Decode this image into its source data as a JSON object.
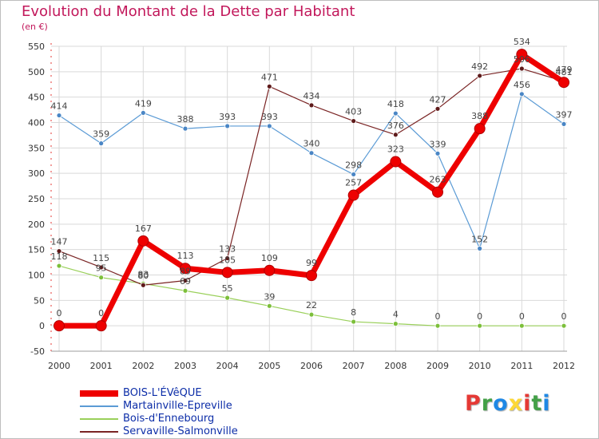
{
  "title": "Evolution du Montant de la Dette par Habitant",
  "unit": "(en €)",
  "logo": {
    "letters": [
      "P",
      "r",
      "o",
      "x",
      "i",
      "t",
      "i"
    ],
    "colors": [
      "#e53935",
      "#43a047",
      "#1e88e5",
      "#fdd835",
      "#e53935",
      "#43a047",
      "#1e88e5"
    ]
  },
  "chart_data": {
    "type": "line",
    "title": "Evolution du Montant de la Dette par Habitant",
    "ylabel": "(en €)",
    "xlabel": "",
    "categories": [
      "2000",
      "2001",
      "2002",
      "2003",
      "2004",
      "2005",
      "2006",
      "2007",
      "2008",
      "2009",
      "2010",
      "2011",
      "2012"
    ],
    "ylim": [
      -50,
      550
    ],
    "yticks": [
      -50,
      0,
      50,
      100,
      150,
      200,
      250,
      300,
      350,
      400,
      450,
      500,
      550
    ],
    "grid": true,
    "legend_position": "bottom-left",
    "series": [
      {
        "name": "Martainville-Epreville",
        "color": "#5b9bd5",
        "marker": "#4a86c5",
        "width": 1.2,
        "values": [
          414,
          359,
          419,
          388,
          393,
          393,
          340,
          298,
          418,
          339,
          152,
          456,
          397
        ],
        "labels": [
          "414",
          "359",
          "419",
          "388",
          "393",
          "393",
          "340",
          "298",
          "418",
          "339",
          "152",
          "456",
          "397"
        ]
      },
      {
        "name": "Bois-d'Ennebourg",
        "color": "#9ad05a",
        "marker": "#7cbf3a",
        "width": 1.2,
        "values": [
          118,
          95,
          83,
          69,
          55,
          39,
          22,
          8,
          4,
          0,
          0,
          0,
          0
        ],
        "labels": [
          "118",
          "95",
          "83",
          "69",
          "55",
          "39",
          "22",
          "8",
          "4",
          "0",
          "0",
          "0",
          "0"
        ]
      },
      {
        "name": "Servaville-Salmonville",
        "color": "#7a2424",
        "marker": "#5e1a1a",
        "width": 1.2,
        "values": [
          147,
          115,
          80,
          89,
          133,
          471,
          434,
          403,
          376,
          427,
          492,
          506,
          481
        ],
        "labels": [
          "147",
          "115",
          "80",
          "89",
          "133",
          "471",
          "434",
          "403",
          "376",
          "427",
          "492",
          "506",
          "481"
        ]
      },
      {
        "name": "BOIS-L'ÉVêQUE",
        "color": "#ee0000",
        "marker": "#ee0000",
        "width": 7,
        "values": [
          0,
          0,
          167,
          113,
          105,
          109,
          99,
          257,
          323,
          263,
          388,
          534,
          479
        ],
        "labels": [
          "0",
          "0",
          "167",
          "113",
          "105",
          "109",
          "99",
          "257",
          "323",
          "263",
          "388",
          "534",
          "479"
        ]
      }
    ],
    "legend_order": [
      "BOIS-L'ÉVêQUE",
      "Martainville-Epreville",
      "Bois-d'Ennebourg",
      "Servaville-Salmonville"
    ]
  }
}
